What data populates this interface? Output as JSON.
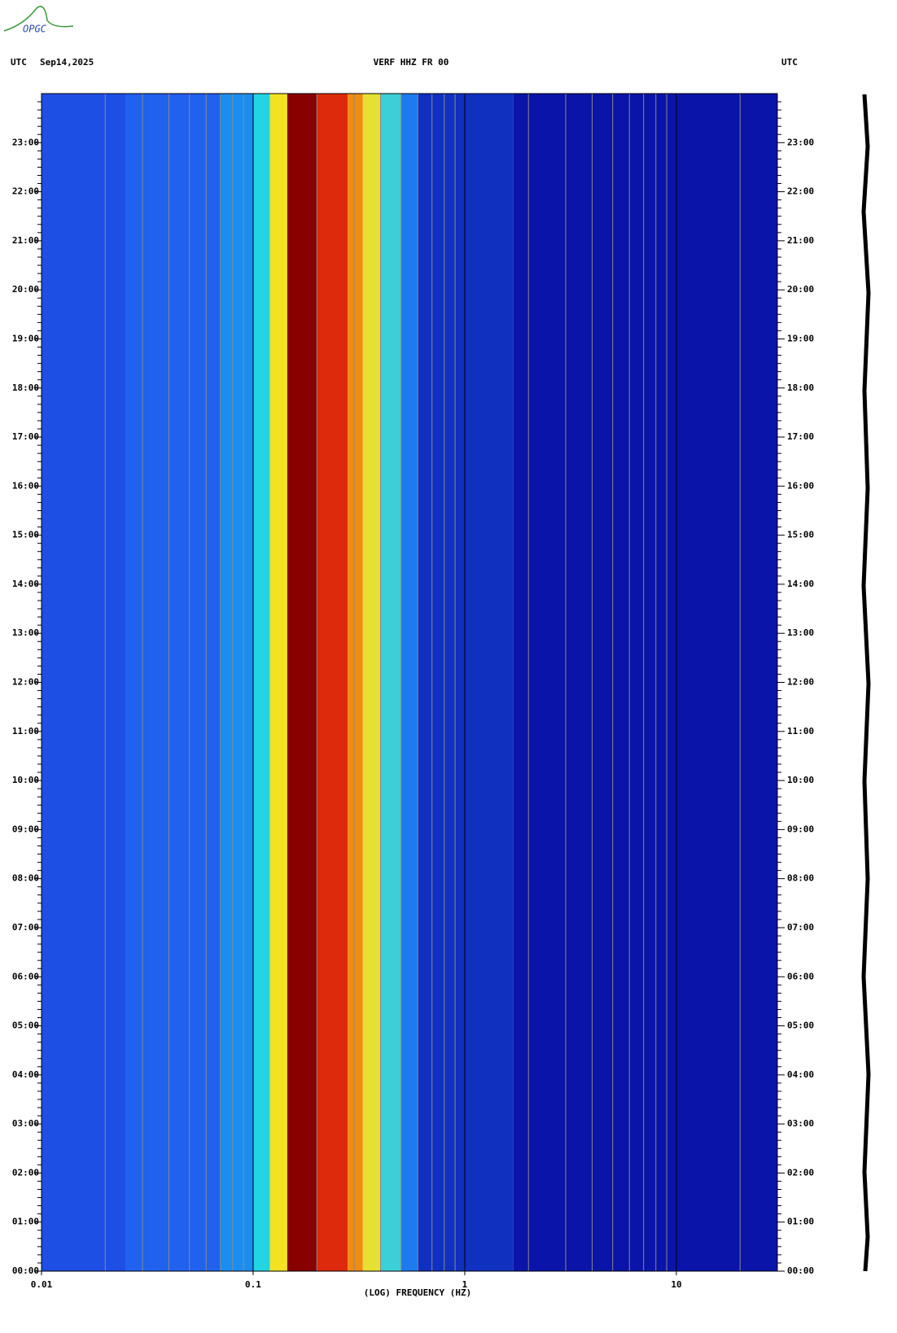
{
  "chart_data": {
    "type": "spectrogram",
    "logo": "OPGC",
    "title": "VERF HHZ FR 00",
    "left_label": "UTC",
    "date": "Sep14,2025",
    "right_label": "UTC",
    "xlabel": "(LOG) FREQUENCY (HZ)",
    "xscale": "log",
    "xlim": [
      0.01,
      30
    ],
    "xticks": [
      0.01,
      0.1,
      1,
      10
    ],
    "xgrid": [
      0.02,
      0.03,
      0.04,
      0.05,
      0.06,
      0.07,
      0.08,
      0.09,
      0.2,
      0.3,
      0.4,
      0.5,
      0.6,
      0.7,
      0.8,
      0.9,
      2,
      3,
      4,
      5,
      6,
      7,
      8,
      9,
      20
    ],
    "ylim": [
      0,
      24
    ],
    "yminor": 6,
    "yticks": [
      {
        "value": 0,
        "label": "00:00"
      },
      {
        "value": 1,
        "label": "01:00"
      },
      {
        "value": 2,
        "label": "02:00"
      },
      {
        "value": 3,
        "label": "03:00"
      },
      {
        "value": 4,
        "label": "04:00"
      },
      {
        "value": 5,
        "label": "05:00"
      },
      {
        "value": 6,
        "label": "06:00"
      },
      {
        "value": 7,
        "label": "07:00"
      },
      {
        "value": 8,
        "label": "08:00"
      },
      {
        "value": 9,
        "label": "09:00"
      },
      {
        "value": 10,
        "label": "10:00"
      },
      {
        "value": 11,
        "label": "11:00"
      },
      {
        "value": 12,
        "label": "12:00"
      },
      {
        "value": 13,
        "label": "13:00"
      },
      {
        "value": 14,
        "label": "14:00"
      },
      {
        "value": 15,
        "label": "15:00"
      },
      {
        "value": 16,
        "label": "16:00"
      },
      {
        "value": 17,
        "label": "17:00"
      },
      {
        "value": 18,
        "label": "18:00"
      },
      {
        "value": 19,
        "label": "19:00"
      },
      {
        "value": 20,
        "label": "20:00"
      },
      {
        "value": 21,
        "label": "21:00"
      },
      {
        "value": 22,
        "label": "22:00"
      },
      {
        "value": 23,
        "label": "23:00"
      }
    ],
    "bands": {
      "edges": [
        0.01,
        0.025,
        0.07,
        0.1,
        0.12,
        0.145,
        0.2,
        0.28,
        0.33,
        0.4,
        0.5,
        0.6,
        1.7,
        30
      ],
      "colors": [
        "#1e4fe4",
        "#2062ee",
        "#1a8ef0",
        "#22d4e4",
        "#f2e222",
        "#880000",
        "#de2a0c",
        "#f08c10",
        "#e6e032",
        "#3ccfd8",
        "#1e7aee",
        "#1030c0",
        "#0a14a8"
      ]
    }
  }
}
